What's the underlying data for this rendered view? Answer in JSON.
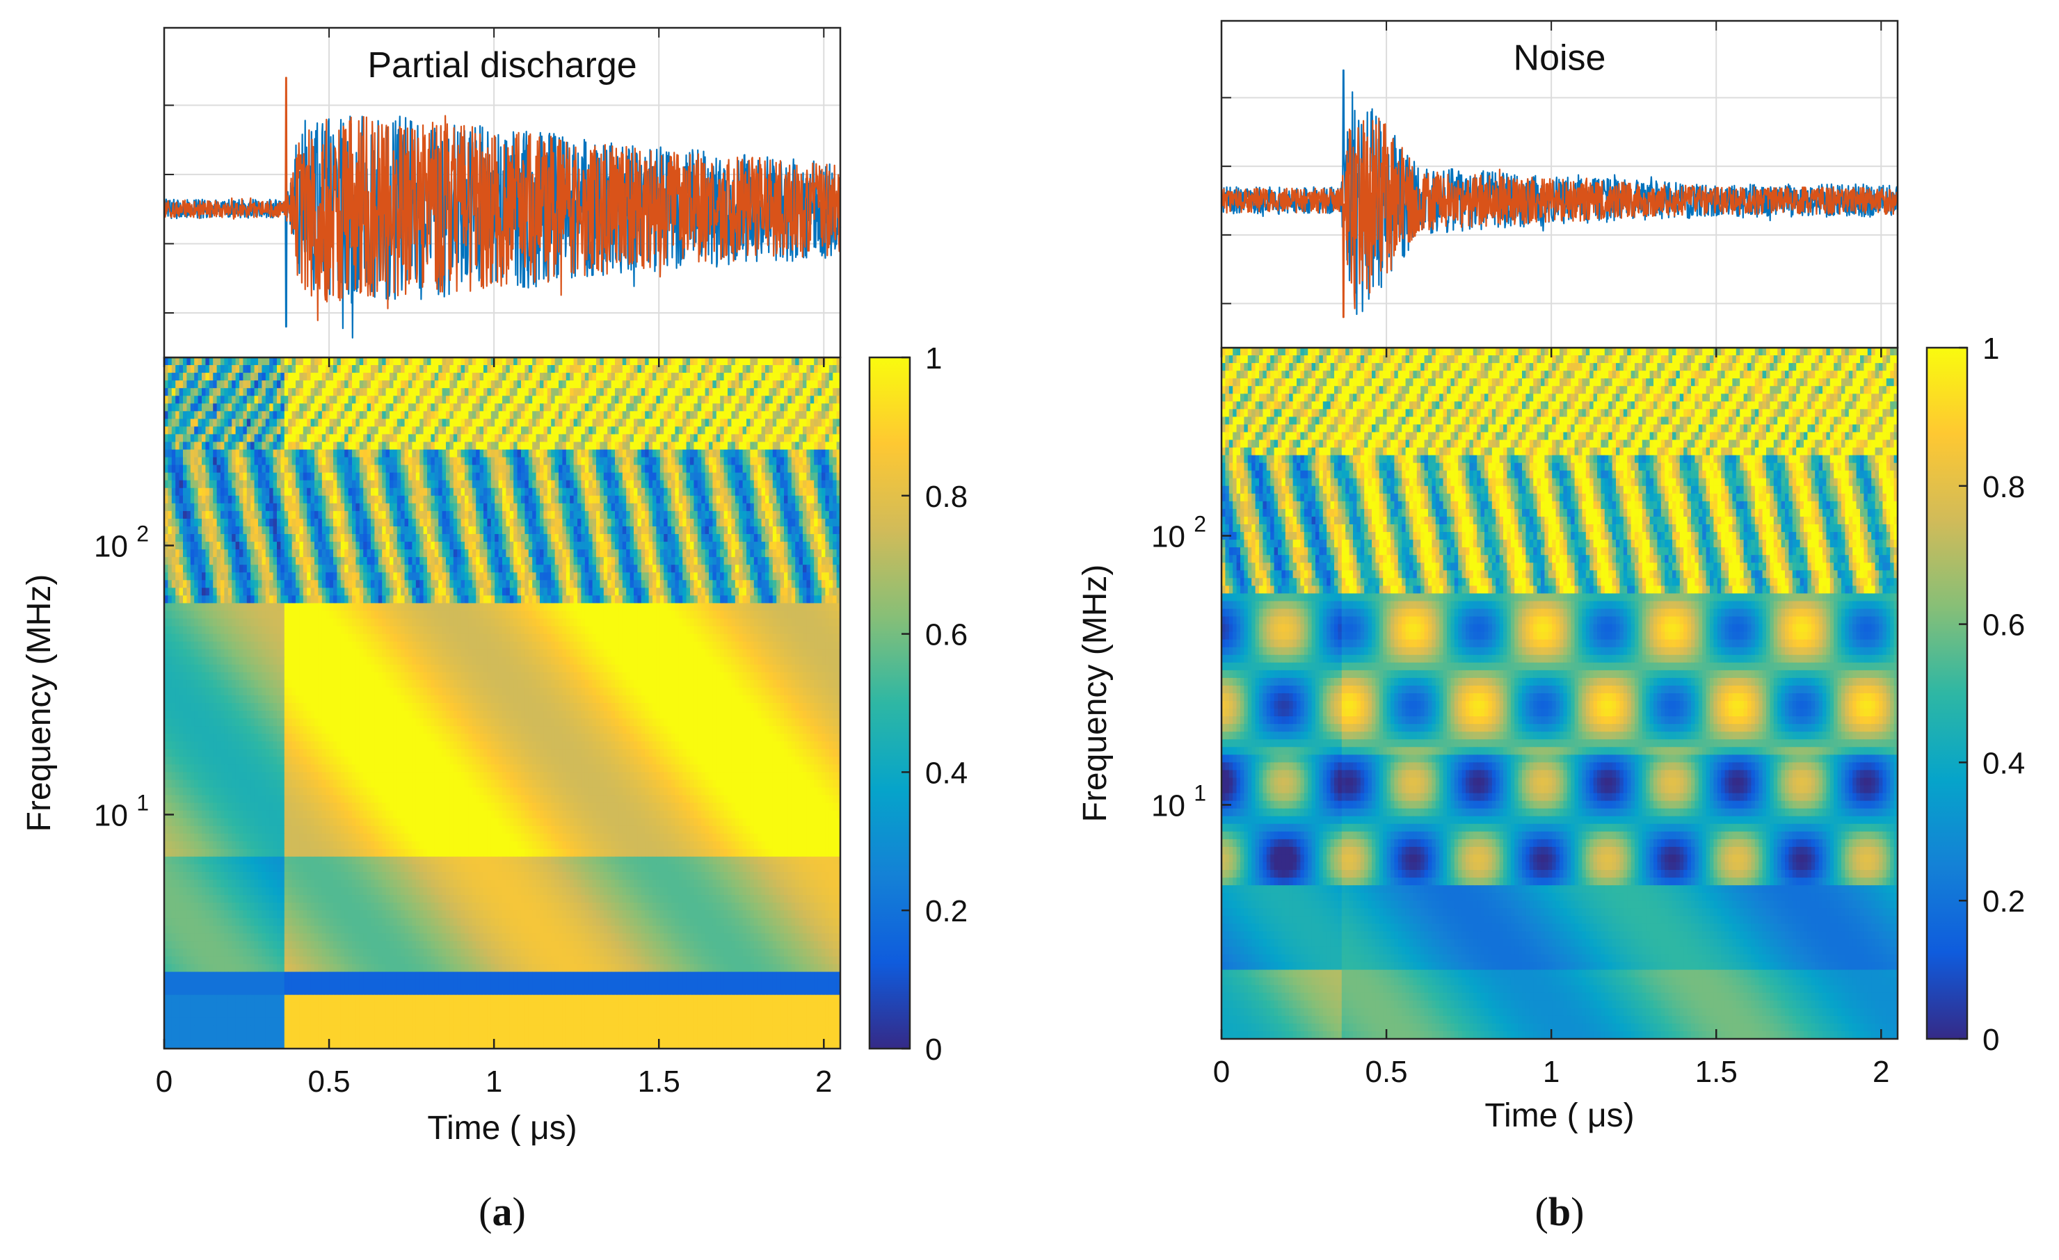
{
  "chart_data": [
    {
      "panel_label": "(a)",
      "panel_letter": "a",
      "type": "line",
      "title": "Partial discharge",
      "xlabel": "",
      "ylabel": "",
      "xlim": [
        0,
        2.05
      ],
      "grid": true,
      "series": [
        {
          "color": "#0072BD",
          "onset_us": 0.37,
          "peak_at_onset": -0.85,
          "envelope": [
            [
              0,
              0.07
            ],
            [
              0.37,
              0.07
            ],
            [
              0.42,
              0.65
            ],
            [
              0.6,
              0.7
            ],
            [
              1.0,
              0.6
            ],
            [
              1.5,
              0.45
            ],
            [
              2.05,
              0.35
            ]
          ]
        },
        {
          "color": "#D95319",
          "onset_us": 0.37,
          "peak_at_onset": 0.95,
          "envelope": [
            [
              0,
              0.06
            ],
            [
              0.37,
              0.06
            ],
            [
              0.42,
              0.7
            ],
            [
              0.6,
              0.68
            ],
            [
              1.0,
              0.58
            ],
            [
              1.5,
              0.42
            ],
            [
              2.05,
              0.33
            ]
          ]
        }
      ]
    },
    {
      "panel_label": "(a)",
      "panel_letter": "a",
      "type": "heatmap",
      "title": "",
      "xlabel": "Time (  μs)",
      "ylabel": "Frequency (MHz)",
      "xlim": [
        0,
        2.05
      ],
      "x_ticks": [
        "0",
        "0.5",
        "1",
        "1.5",
        "2"
      ],
      "y_scale": "log",
      "ylim": [
        1.35,
        500
      ],
      "y_tick_base": "10",
      "y_ticks": [
        {
          "value": 10,
          "exponent": "1"
        },
        {
          "value": 100,
          "exponent": "2"
        }
      ],
      "colorbar": {
        "range": [
          0,
          1
        ],
        "ticks": [
          "0",
          "0.2",
          "0.4",
          "0.6",
          "0.8",
          "1"
        ],
        "colormap": "parula"
      },
      "pattern": {
        "onset_us": 0.37,
        "bands": [
          {
            "f_low": 220,
            "f_high": 500,
            "level": 0.92,
            "level_before_onset": 0.5,
            "variation": "oscillating"
          },
          {
            "f_low": 60,
            "f_high": 220,
            "level": 0.55,
            "level_before_onset": 0.5,
            "variation": "striped"
          },
          {
            "f_low": 7,
            "f_high": 60,
            "level": 0.9,
            "level_before_onset": 0.6,
            "variation": "smooth"
          },
          {
            "f_low": 2.6,
            "f_high": 7,
            "level": 0.7,
            "level_before_onset": 0.45,
            "variation": "smooth"
          },
          {
            "f_low": 2.2,
            "f_high": 2.6,
            "level": 0.15,
            "level_before_onset": 0.2,
            "variation": "flat"
          },
          {
            "f_low": 1.35,
            "f_high": 2.2,
            "level": 0.9,
            "level_before_onset": 0.25,
            "variation": "flat"
          }
        ]
      }
    },
    {
      "panel_label": "(b)",
      "panel_letter": "b",
      "type": "line",
      "title": "Noise",
      "xlabel": "",
      "ylabel": "",
      "xlim": [
        0,
        2.05
      ],
      "grid": true,
      "series": [
        {
          "color": "#0072BD",
          "onset_us": 0.37,
          "peak_at_onset": 0.95,
          "envelope": [
            [
              0,
              0.1
            ],
            [
              0.36,
              0.1
            ],
            [
              0.4,
              0.9
            ],
            [
              0.5,
              0.6
            ],
            [
              0.6,
              0.25
            ],
            [
              1.0,
              0.18
            ],
            [
              1.5,
              0.12
            ],
            [
              2.05,
              0.12
            ]
          ]
        },
        {
          "color": "#D95319",
          "onset_us": 0.37,
          "peak_at_onset": -0.85,
          "envelope": [
            [
              0,
              0.09
            ],
            [
              0.36,
              0.09
            ],
            [
              0.4,
              0.8
            ],
            [
              0.5,
              0.55
            ],
            [
              0.6,
              0.22
            ],
            [
              1.0,
              0.16
            ],
            [
              1.5,
              0.1
            ],
            [
              2.05,
              0.1
            ]
          ]
        }
      ]
    },
    {
      "panel_label": "(b)",
      "panel_letter": "b",
      "type": "heatmap",
      "title": "",
      "xlabel": "Time (  μs)",
      "ylabel": "Frequency (MHz)",
      "xlim": [
        0,
        2.05
      ],
      "x_ticks": [
        "0",
        "0.5",
        "1",
        "1.5",
        "2"
      ],
      "y_scale": "log",
      "ylim": [
        1.35,
        500
      ],
      "y_tick_base": "10",
      "y_ticks": [
        {
          "value": 10,
          "exponent": "1"
        },
        {
          "value": 100,
          "exponent": "2"
        }
      ],
      "colorbar": {
        "range": [
          0,
          1
        ],
        "ticks": [
          "0",
          "0.2",
          "0.4",
          "0.6",
          "0.8",
          "1"
        ],
        "colormap": "parula"
      },
      "pattern": {
        "onset_us": 0.37,
        "bands": [
          {
            "f_low": 200,
            "f_high": 500,
            "level": 0.92,
            "level_before_onset": 0.85,
            "variation": "oscillating"
          },
          {
            "f_low": 60,
            "f_high": 200,
            "level": 0.7,
            "level_before_onset": 0.55,
            "variation": "striped"
          },
          {
            "f_low": 15,
            "f_high": 60,
            "level": 0.55,
            "level_before_onset": 0.45,
            "variation": "blobs"
          },
          {
            "f_low": 5,
            "f_high": 15,
            "level": 0.4,
            "level_before_onset": 0.35,
            "variation": "blobs"
          },
          {
            "f_low": 2.5,
            "f_high": 5,
            "level": 0.35,
            "level_before_onset": 0.3,
            "variation": "smooth"
          },
          {
            "f_low": 1.35,
            "f_high": 2.5,
            "level": 0.45,
            "level_before_onset": 0.55,
            "variation": "smooth"
          }
        ]
      }
    }
  ]
}
